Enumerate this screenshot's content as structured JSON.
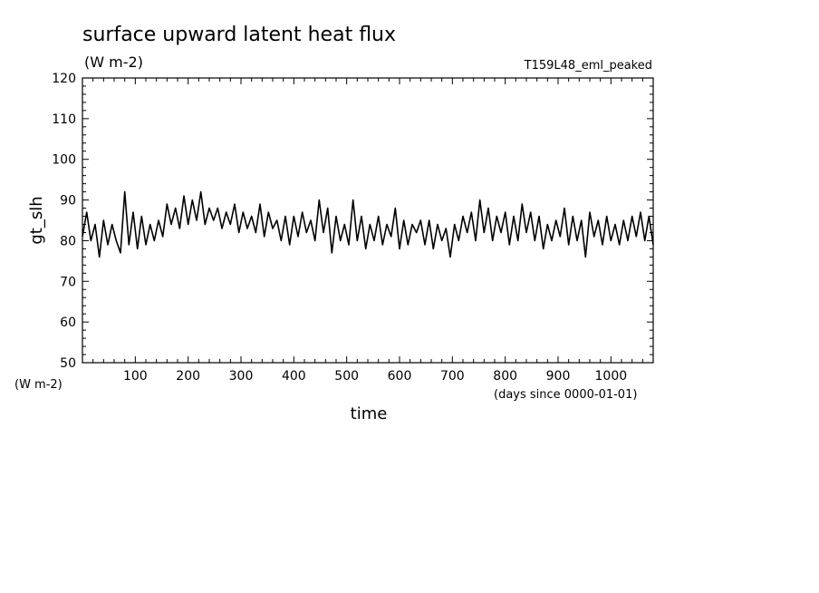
{
  "chart_data": {
    "type": "line",
    "title": "surface upward latent heat flux",
    "units": "(W m-2)",
    "experiment": "T159L48_eml_peaked",
    "ylabel": "gt_slh",
    "yunits": "(W m-2)",
    "xlabel": "time",
    "xunits": "(days since 0000-01-01)",
    "xlim": [
      0,
      1080
    ],
    "ylim": [
      50,
      120
    ],
    "xticks": [
      100,
      200,
      300,
      400,
      500,
      600,
      700,
      800,
      900,
      1000
    ],
    "yticks": [
      50,
      60,
      70,
      80,
      90,
      100,
      110,
      120
    ],
    "grid": false,
    "series": [
      {
        "color": "#000000",
        "x": [
          0,
          8,
          16,
          24,
          32,
          40,
          48,
          56,
          64,
          72,
          80,
          88,
          96,
          104,
          112,
          120,
          128,
          136,
          144,
          152,
          160,
          168,
          176,
          184,
          192,
          200,
          208,
          216,
          224,
          232,
          240,
          248,
          256,
          264,
          272,
          280,
          288,
          296,
          304,
          312,
          320,
          328,
          336,
          344,
          352,
          360,
          368,
          376,
          384,
          392,
          400,
          408,
          416,
          424,
          432,
          440,
          448,
          456,
          464,
          472,
          480,
          488,
          496,
          504,
          512,
          520,
          528,
          536,
          544,
          552,
          560,
          568,
          576,
          584,
          592,
          600,
          608,
          616,
          624,
          632,
          640,
          648,
          656,
          664,
          672,
          680,
          688,
          696,
          704,
          712,
          720,
          728,
          736,
          744,
          752,
          760,
          768,
          776,
          784,
          792,
          800,
          808,
          816,
          824,
          832,
          840,
          848,
          856,
          864,
          872,
          880,
          888,
          896,
          904,
          912,
          920,
          928,
          936,
          944,
          952,
          960,
          968,
          976,
          984,
          992,
          1000,
          1008,
          1016,
          1024,
          1032,
          1040,
          1048,
          1056,
          1064,
          1072,
          1080
        ],
        "y": [
          81,
          87,
          80,
          84,
          76,
          85,
          79,
          84,
          80,
          77,
          92,
          79,
          87,
          78,
          86,
          79,
          84,
          80,
          85,
          81,
          89,
          84,
          88,
          83,
          91,
          84,
          90,
          85,
          92,
          84,
          88,
          85,
          88,
          83,
          87,
          84,
          89,
          82,
          87,
          83,
          86,
          82,
          89,
          81,
          87,
          83,
          85,
          80,
          86,
          79,
          86,
          81,
          87,
          82,
          85,
          80,
          90,
          82,
          88,
          77,
          86,
          80,
          84,
          79,
          90,
          80,
          86,
          78,
          84,
          80,
          86,
          79,
          84,
          81,
          88,
          78,
          85,
          79,
          84,
          82,
          85,
          79,
          85,
          78,
          84,
          80,
          83,
          76,
          84,
          80,
          86,
          82,
          87,
          80,
          90,
          82,
          88,
          80,
          86,
          82,
          87,
          79,
          86,
          80,
          89,
          82,
          87,
          80,
          86,
          78,
          84,
          80,
          85,
          81,
          88,
          79,
          86,
          80,
          85,
          76,
          87,
          81,
          85,
          79,
          86,
          80,
          84,
          79,
          85,
          80,
          86,
          81,
          87,
          80,
          86,
          79
        ]
      }
    ]
  }
}
